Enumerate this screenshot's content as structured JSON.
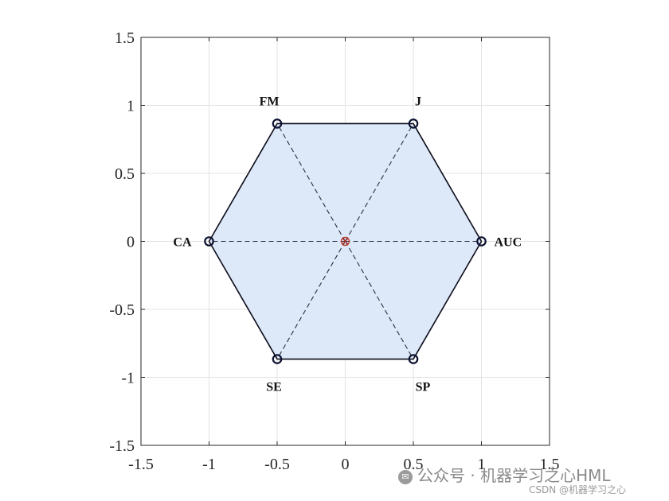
{
  "chart_data": {
    "type": "radar",
    "xlim": [
      -1.5,
      1.5
    ],
    "ylim": [
      -1.5,
      1.5
    ],
    "grid": true,
    "x_ticks": [
      "-1.5",
      "-1",
      "-0.5",
      "0",
      "0.5",
      "1",
      "1.5"
    ],
    "y_ticks": [
      "1.5",
      "1",
      "0.5",
      "0",
      "-0.5",
      "-1",
      "-1.5"
    ],
    "x_tick_values": [
      -1.5,
      -1,
      -0.5,
      0,
      0.5,
      1,
      1.5
    ],
    "y_tick_values": [
      1.5,
      1,
      0.5,
      0,
      -0.5,
      -1,
      -1.5
    ],
    "vertices": [
      {
        "label": "AUC",
        "x": 1.0,
        "y": 0.0
      },
      {
        "label": "J",
        "x": 0.5,
        "y": 0.866
      },
      {
        "label": "FM",
        "x": -0.5,
        "y": 0.866
      },
      {
        "label": "CA",
        "x": -1.0,
        "y": 0.0
      },
      {
        "label": "SE",
        "x": -0.5,
        "y": -0.866
      },
      {
        "label": "SP",
        "x": 0.5,
        "y": -0.866
      }
    ],
    "center": {
      "x": 0,
      "y": 0
    },
    "colors": {
      "fill": "#dde9f8",
      "outline": "#0b0b1a",
      "marker": "#0a1030",
      "center_marker": "#c0392b",
      "grid": "#e3e3e3",
      "axis": "#262626",
      "dash": "#2b2b3a"
    }
  },
  "watermark": {
    "logo": "wechat-icon",
    "line1": "公众号 · 机器学习之心HML",
    "line2": "CSDN @机器学习之心"
  }
}
